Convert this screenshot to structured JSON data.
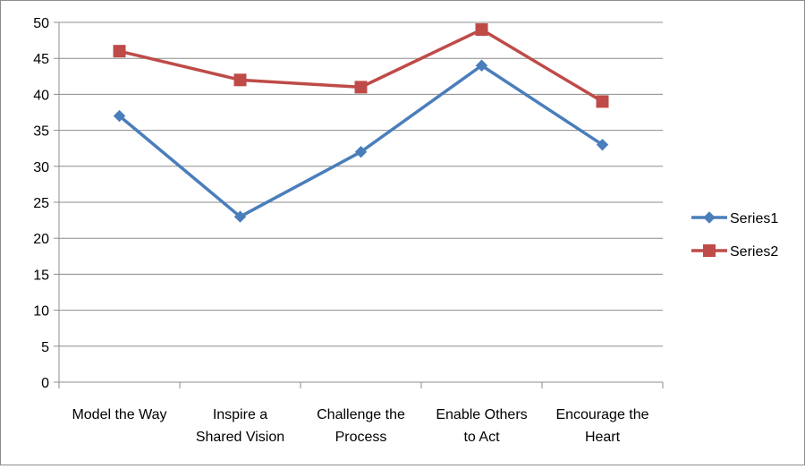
{
  "chart_data": {
    "type": "line",
    "title": "",
    "xlabel": "",
    "ylabel": "",
    "categories": [
      [
        "Model the Way"
      ],
      [
        "Inspire a",
        "Shared Vision"
      ],
      [
        "Challenge the",
        "Process"
      ],
      [
        "Enable Others",
        "to Act"
      ],
      [
        "Encourage the",
        "Heart"
      ]
    ],
    "ylim": [
      0,
      50
    ],
    "yticks": [
      0,
      5,
      10,
      15,
      20,
      25,
      30,
      35,
      40,
      45,
      50
    ],
    "grid": true,
    "legend_position": "right",
    "series": [
      {
        "name": "Series1",
        "values": [
          37,
          23,
          32,
          44,
          33
        ],
        "color": "#4a7ebb",
        "marker": "diamond"
      },
      {
        "name": "Series2",
        "values": [
          46,
          42,
          41,
          49,
          39
        ],
        "color": "#be4b48",
        "marker": "square"
      }
    ]
  }
}
